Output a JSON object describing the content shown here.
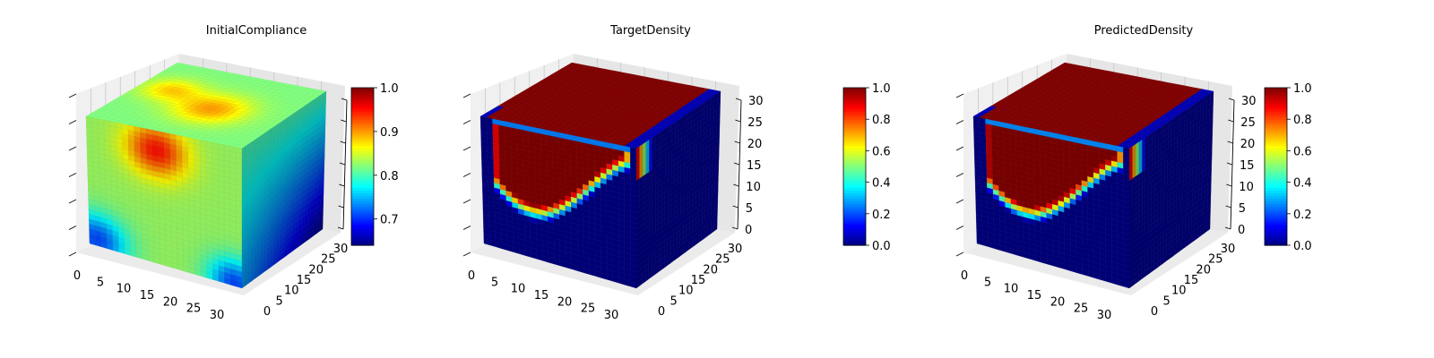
{
  "chart_data": [
    {
      "type": "voxel3d",
      "title": "InitialCompliance",
      "colormap": "jet",
      "colorbar": {
        "range": [
          0.64,
          1.0
        ],
        "ticks": [
          0.7,
          0.8,
          0.9,
          1.0
        ],
        "tick_labels": [
          "0.7",
          "0.8",
          "0.9",
          "1.0"
        ]
      },
      "x_ticks": [
        "0",
        "5",
        "10",
        "15",
        "20",
        "25",
        "30"
      ],
      "y_ticks": [
        "0",
        "5",
        "10",
        "15",
        "20",
        "25",
        "30"
      ],
      "z_ticks": [],
      "axis_range": [
        0,
        32
      ],
      "field": "compliance"
    },
    {
      "type": "voxel3d",
      "title": "TargetDensity",
      "colormap": "jet",
      "colorbar": {
        "range": [
          0.0,
          1.0
        ],
        "ticks": [
          0.0,
          0.2,
          0.4,
          0.6,
          0.8,
          1.0
        ],
        "tick_labels": [
          "0.0",
          "0.2",
          "0.4",
          "0.6",
          "0.8",
          "1.0"
        ]
      },
      "x_ticks": [
        "0",
        "5",
        "10",
        "15",
        "20",
        "25",
        "30"
      ],
      "y_ticks": [
        "0",
        "5",
        "10",
        "15",
        "20",
        "25",
        "30"
      ],
      "z_ticks": [
        "0",
        "5",
        "10",
        "15",
        "20",
        "25",
        "30"
      ],
      "axis_range": [
        0,
        32
      ],
      "field": "density"
    },
    {
      "type": "voxel3d",
      "title": "PredictedDensity",
      "colormap": "jet",
      "colorbar": {
        "range": [
          0.0,
          1.0
        ],
        "ticks": [
          0.0,
          0.2,
          0.4,
          0.6,
          0.8,
          1.0
        ],
        "tick_labels": [
          "0.0",
          "0.2",
          "0.4",
          "0.6",
          "0.8",
          "1.0"
        ]
      },
      "x_ticks": [
        "0",
        "5",
        "10",
        "15",
        "20",
        "25",
        "30"
      ],
      "y_ticks": [
        "0",
        "5",
        "10",
        "15",
        "20",
        "25",
        "30"
      ],
      "z_ticks": [
        "0",
        "5",
        "10",
        "15",
        "20",
        "25",
        "30"
      ],
      "axis_range": [
        0,
        32
      ],
      "field": "density"
    }
  ]
}
